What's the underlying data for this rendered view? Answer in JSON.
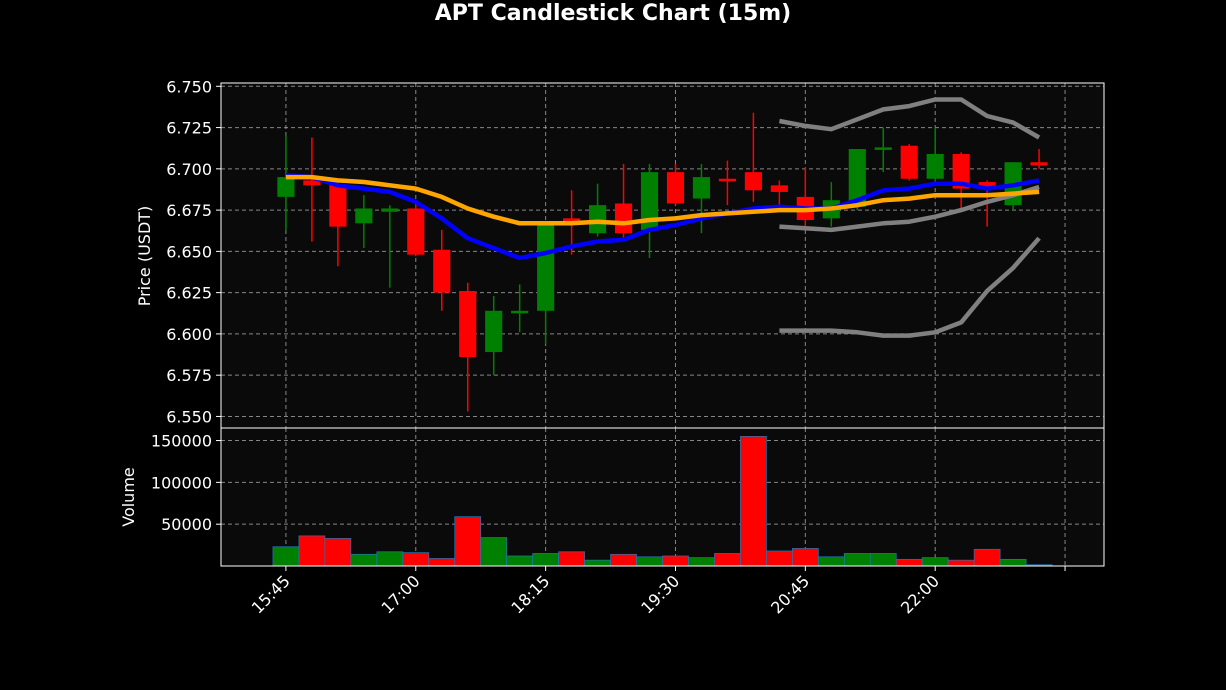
{
  "chart_data": {
    "type": "candlestick",
    "title": "APT Candlestick Chart (15m)",
    "price_ylabel": "Price (USDT)",
    "volume_ylabel": "Volume",
    "price_ylim": [
      6.543,
      6.752
    ],
    "volume_ylim": [
      0,
      165000
    ],
    "price_ticks": [
      "6.550",
      "6.575",
      "6.600",
      "6.625",
      "6.650",
      "6.675",
      "6.700",
      "6.725",
      "6.750"
    ],
    "volume_ticks": [
      "50000",
      "100000",
      "150000"
    ],
    "x_ticks": [
      {
        "index": 0,
        "label": "15:45"
      },
      {
        "index": 5,
        "label": "17:00"
      },
      {
        "index": 10,
        "label": "18:15"
      },
      {
        "index": 15,
        "label": "19:30"
      },
      {
        "index": 20,
        "label": "20:45"
      },
      {
        "index": 25,
        "label": "22:00"
      },
      {
        "index": 30,
        "label": ""
      }
    ],
    "x_range": [
      -2.5,
      31.5
    ],
    "grid": true,
    "colors": {
      "up": "#008000",
      "down": "#ff0000",
      "ema_fast": "#0000ff",
      "ema_slow": "#ffa500",
      "bands": "#808080",
      "panel_bg": "#0a0a0a",
      "text": "#ffffff"
    },
    "candles": [
      {
        "o": 6.683,
        "h": 6.72,
        "l": 6.663,
        "c": 6.695,
        "v": 23000
      },
      {
        "o": 6.693,
        "h": 6.719,
        "l": 6.656,
        "c": 6.69,
        "v": 36000
      },
      {
        "o": 6.69,
        "h": 6.693,
        "l": 6.641,
        "c": 6.665,
        "v": 33000
      },
      {
        "o": 6.667,
        "h": 6.684,
        "l": 6.652,
        "c": 6.676,
        "v": 14000
      },
      {
        "o": 6.674,
        "h": 6.678,
        "l": 6.628,
        "c": 6.676,
        "v": 17000
      },
      {
        "o": 6.676,
        "h": 6.68,
        "l": 6.647,
        "c": 6.648,
        "v": 16000
      },
      {
        "o": 6.651,
        "h": 6.663,
        "l": 6.614,
        "c": 6.625,
        "v": 9000
      },
      {
        "o": 6.626,
        "h": 6.631,
        "l": 6.553,
        "c": 6.586,
        "v": 59000
      },
      {
        "o": 6.589,
        "h": 6.623,
        "l": 6.575,
        "c": 6.614,
        "v": 34000
      },
      {
        "o": 6.613,
        "h": 6.63,
        "l": 6.601,
        "c": 6.614,
        "v": 12000
      },
      {
        "o": 6.614,
        "h": 6.668,
        "l": 6.594,
        "c": 6.667,
        "v": 15000
      },
      {
        "o": 6.67,
        "h": 6.687,
        "l": 6.648,
        "c": 6.667,
        "v": 17000
      },
      {
        "o": 6.661,
        "h": 6.691,
        "l": 6.659,
        "c": 6.678,
        "v": 7000
      },
      {
        "o": 6.679,
        "h": 6.703,
        "l": 6.656,
        "c": 6.661,
        "v": 14000
      },
      {
        "o": 6.663,
        "h": 6.703,
        "l": 6.646,
        "c": 6.698,
        "v": 11000
      },
      {
        "o": 6.698,
        "h": 6.703,
        "l": 6.678,
        "c": 6.679,
        "v": 12000
      },
      {
        "o": 6.682,
        "h": 6.703,
        "l": 6.661,
        "c": 6.695,
        "v": 10000
      },
      {
        "o": 6.694,
        "h": 6.705,
        "l": 6.678,
        "c": 6.693,
        "v": 15000
      },
      {
        "o": 6.698,
        "h": 6.734,
        "l": 6.68,
        "c": 6.687,
        "v": 155000
      },
      {
        "o": 6.69,
        "h": 6.693,
        "l": 6.678,
        "c": 6.686,
        "v": 18000
      },
      {
        "o": 6.683,
        "h": 6.701,
        "l": 6.663,
        "c": 6.669,
        "v": 21000
      },
      {
        "o": 6.67,
        "h": 6.692,
        "l": 6.665,
        "c": 6.681,
        "v": 11000
      },
      {
        "o": 6.677,
        "h": 6.712,
        "l": 6.675,
        "c": 6.712,
        "v": 15000
      },
      {
        "o": 6.713,
        "h": 6.725,
        "l": 6.698,
        "c": 6.713,
        "v": 15000
      },
      {
        "o": 6.714,
        "h": 6.715,
        "l": 6.693,
        "c": 6.694,
        "v": 8000
      },
      {
        "o": 6.694,
        "h": 6.725,
        "l": 6.692,
        "c": 6.709,
        "v": 10000
      },
      {
        "o": 6.709,
        "h": 6.71,
        "l": 6.675,
        "c": 6.688,
        "v": 7000
      },
      {
        "o": 6.692,
        "h": 6.693,
        "l": 6.665,
        "c": 6.689,
        "v": 20000
      },
      {
        "o": 6.678,
        "h": 6.703,
        "l": 6.675,
        "c": 6.704,
        "v": 8000
      },
      {
        "o": 6.704,
        "h": 6.712,
        "l": 6.7,
        "c": 6.702,
        "v": 1500
      }
    ],
    "ema_fast": [
      6.696,
      6.695,
      6.69,
      6.688,
      6.686,
      6.68,
      6.67,
      6.658,
      6.652,
      6.646,
      6.649,
      6.653,
      6.656,
      6.657,
      6.663,
      6.666,
      6.67,
      6.673,
      6.676,
      6.677,
      6.676,
      6.676,
      6.681,
      6.687,
      6.688,
      6.691,
      6.691,
      6.688,
      6.69,
      6.693
    ],
    "ema_slow": [
      6.695,
      6.695,
      6.693,
      6.692,
      6.69,
      6.688,
      6.683,
      6.676,
      6.671,
      6.667,
      6.667,
      6.667,
      6.668,
      6.667,
      6.669,
      6.67,
      6.672,
      6.673,
      6.674,
      6.675,
      6.675,
      6.676,
      6.678,
      6.681,
      6.682,
      6.684,
      6.684,
      6.684,
      6.685,
      6.686
    ],
    "band_start": 19,
    "band_upper": [
      6.729,
      6.726,
      6.724,
      6.73,
      6.736,
      6.738,
      6.742,
      6.742,
      6.732,
      6.728,
      6.719
    ],
    "band_middle": [
      6.665,
      6.664,
      6.663,
      6.665,
      6.667,
      6.668,
      6.671,
      6.675,
      6.68,
      6.684,
      6.689
    ],
    "band_lower": [
      6.602,
      6.602,
      6.602,
      6.601,
      6.599,
      6.599,
      6.601,
      6.607,
      6.626,
      6.64,
      6.658
    ]
  }
}
